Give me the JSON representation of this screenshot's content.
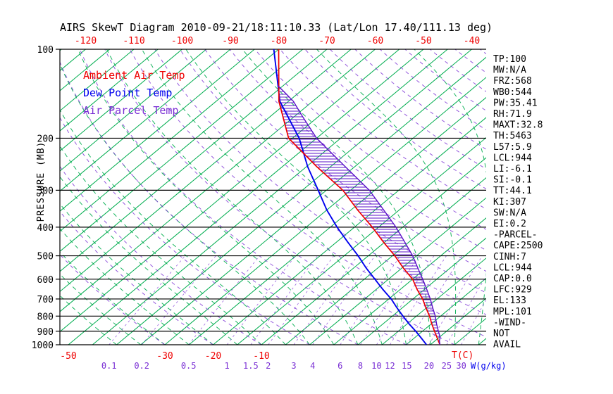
{
  "title": "AIRS SkewT Diagram 2010-09-21/18:11:10.33 (Lat/Lon 17.40/111.13 deg)",
  "legend": [
    {
      "label": "Ambient Air Temp",
      "color": "#ee0000"
    },
    {
      "label": "Dew Point Temp",
      "color": "#0000ee"
    },
    {
      "label": "Air Parcel Temp",
      "color": "#5a10c8"
    }
  ],
  "axes": {
    "pressure_label": "PRESSURE (MB)",
    "temp_unit_label": "T(C)",
    "mixing_unit_label": "W(g/kg)"
  },
  "stats_panel": {
    "lines": [
      "TP:100",
      "MW:N/A",
      "FRZ:568",
      "WB0:544",
      "PW:35.41",
      "RH:71.9",
      "MAXT:32.8",
      "TH:5463",
      "L57:5.9",
      "LCL:944",
      "LI:-6.1",
      "SI:-0.1",
      "TT:44.1",
      "KI:307",
      "SW:N/A",
      "EI:0.2",
      "-PARCEL-",
      "CAPE:2500",
      "CINH:7",
      "LCL:944",
      "CAP:0.0",
      "LFC:929",
      "EL:133",
      "MPL:101",
      "-WIND-",
      "NOT",
      "AVAIL"
    ]
  },
  "chart_data": {
    "type": "line",
    "variant": "skew-t-log-p",
    "title": "AIRS SkewT Diagram 2010-09-21/18:11:10.33 (Lat/Lon 17.40/111.13 deg)",
    "ylabel": "PRESSURE (MB)",
    "xlabel": "T(C)",
    "y_axis": {
      "scale": "log",
      "range": [
        100,
        1000
      ],
      "ticks": [
        100,
        200,
        300,
        400,
        500,
        600,
        700,
        800,
        900,
        1000
      ]
    },
    "x_axis": {
      "top_ticks": [
        -120,
        -110,
        -100,
        -90,
        -80,
        -70,
        -60,
        -50,
        -40
      ],
      "bottom_ticks": [
        -50,
        -30,
        -20,
        -10
      ],
      "mixing_ratio_ticks_g_kg": [
        0.1,
        0.2,
        0.5,
        1,
        1.5,
        2,
        3,
        4,
        6,
        8,
        10,
        12,
        15,
        20,
        25,
        30
      ]
    },
    "series": [
      {
        "name": "Ambient Air Temp",
        "color": "#ee0000",
        "points_pressure_mb_temp_c": [
          [
            1000,
            27
          ],
          [
            950,
            24.8
          ],
          [
            900,
            22.5
          ],
          [
            850,
            20.1
          ],
          [
            800,
            17.7
          ],
          [
            750,
            14.9
          ],
          [
            700,
            12
          ],
          [
            650,
            8.5
          ],
          [
            600,
            5
          ],
          [
            550,
            0.3
          ],
          [
            500,
            -4.5
          ],
          [
            450,
            -10.2
          ],
          [
            400,
            -16.3
          ],
          [
            350,
            -23.6
          ],
          [
            300,
            -31.6
          ],
          [
            250,
            -42.8
          ],
          [
            200,
            -55.8
          ],
          [
            150,
            -67
          ],
          [
            100,
            -80
          ]
        ]
      },
      {
        "name": "Dew Point Temp",
        "color": "#0000ee",
        "points_pressure_mb_temp_c": [
          [
            1000,
            24.2
          ],
          [
            950,
            21.5
          ],
          [
            900,
            18.6
          ],
          [
            850,
            15.4
          ],
          [
            800,
            12.2
          ],
          [
            750,
            8.9
          ],
          [
            700,
            5.5
          ],
          [
            650,
            1.4
          ],
          [
            600,
            -2.8
          ],
          [
            550,
            -7.4
          ],
          [
            500,
            -12.1
          ],
          [
            450,
            -17.6
          ],
          [
            400,
            -23.6
          ],
          [
            350,
            -30
          ],
          [
            300,
            -36.7
          ],
          [
            250,
            -44.7
          ],
          [
            200,
            -53.6
          ],
          [
            150,
            -66.8
          ],
          [
            100,
            -81
          ]
        ]
      },
      {
        "name": "Air Parcel Temp",
        "color": "#5a10c8",
        "points_pressure_mb_temp_c": [
          [
            1000,
            27
          ],
          [
            970,
            25.9
          ],
          [
            944,
            25.2
          ],
          [
            900,
            23.3
          ],
          [
            850,
            21.1
          ],
          [
            800,
            18.9
          ],
          [
            750,
            16.3
          ],
          [
            700,
            13.6
          ],
          [
            650,
            10.5
          ],
          [
            600,
            7.1
          ],
          [
            550,
            3.3
          ],
          [
            500,
            -0.8
          ],
          [
            450,
            -5.8
          ],
          [
            400,
            -11.4
          ],
          [
            350,
            -18.2
          ],
          [
            300,
            -26.1
          ],
          [
            250,
            -36.9
          ],
          [
            200,
            -50
          ],
          [
            170,
            -58
          ],
          [
            150,
            -64
          ],
          [
            140,
            -68
          ],
          [
            133,
            -71
          ]
        ]
      }
    ],
    "background_lines": {
      "isotherms_c": {
        "from": -125,
        "to": 35,
        "step": 5
      },
      "dry_adiabats_theta_c": {
        "from": -30,
        "to": 180,
        "step": 10
      },
      "moist_adiabats_surface_c": {
        "from": -40,
        "to": 35,
        "step": 5
      },
      "mixing_ratio_g_kg": [
        0.1,
        0.2,
        0.5,
        1,
        1.5,
        2,
        3,
        4,
        6,
        8,
        10,
        12,
        15,
        20,
        25,
        30
      ]
    },
    "hatched_region": "CAPE area hatched between Ambient Air Temp and Air Parcel Temp curves"
  }
}
